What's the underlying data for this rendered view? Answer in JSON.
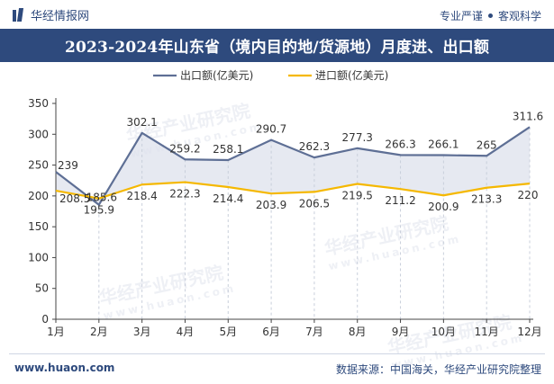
{
  "header": {
    "brand": "华经情报网",
    "tagline_left": "专业严谨",
    "tagline_right": "客观科学",
    "title": "2023-2024年山东省（境内目的地/货源地）月度进、出口额"
  },
  "watermark": {
    "text": "华经产业研究院",
    "url": "www.huaon.com"
  },
  "footer": {
    "url": "www.huaon.com",
    "source": "数据来源：中国海关，华经产业研究院整理"
  },
  "colors": {
    "export": "#5e6f95",
    "import": "#f5b800",
    "fill": "#dde2ec",
    "header_bg": "#2e4a7d"
  },
  "chart_data": {
    "type": "line",
    "categories": [
      "1月",
      "2月",
      "3月",
      "4月",
      "5月",
      "6月",
      "7月",
      "8月",
      "9月",
      "10月",
      "11月",
      "12月"
    ],
    "series": [
      {
        "name": "出口额(亿美元)",
        "values": [
          239,
          185.6,
          302.1,
          259.2,
          258.1,
          290.7,
          262.3,
          277.3,
          266.3,
          266.1,
          265,
          311.6
        ],
        "labels": [
          "239",
          "185.6",
          "302.1",
          "259.2",
          "258.1",
          "290.7",
          "262.3",
          "277.3",
          "266.3",
          "266.1",
          "265",
          "311.6"
        ]
      },
      {
        "name": "进口额(亿美元)",
        "values": [
          208.5,
          195.9,
          218.4,
          222.3,
          214.4,
          203.9,
          206.5,
          219.5,
          211.2,
          200.9,
          213.3,
          220
        ],
        "labels": [
          "208.5",
          "195.9",
          "218.4",
          "222.3",
          "214.4",
          "203.9",
          "206.5",
          "219.5",
          "211.2",
          "200.9",
          "213.3",
          "220"
        ]
      }
    ],
    "yticks": [
      "0",
      "50",
      "100",
      "150",
      "200",
      "250",
      "300",
      "350"
    ],
    "ylim": [
      0,
      350
    ],
    "legend": "top-center",
    "grid": false
  }
}
